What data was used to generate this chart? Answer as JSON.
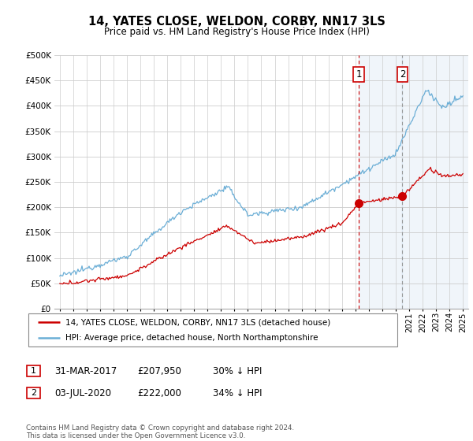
{
  "title": "14, YATES CLOSE, WELDON, CORBY, NN17 3LS",
  "subtitle": "Price paid vs. HM Land Registry's House Price Index (HPI)",
  "legend_line1": "14, YATES CLOSE, WELDON, CORBY, NN17 3LS (detached house)",
  "legend_line2": "HPI: Average price, detached house, North Northamptonshire",
  "footnote": "Contains HM Land Registry data © Crown copyright and database right 2024.\nThis data is licensed under the Open Government Licence v3.0.",
  "annotation1_label": "1",
  "annotation1_date": "31-MAR-2017",
  "annotation1_price": "£207,950",
  "annotation1_hpi": "30% ↓ HPI",
  "annotation2_label": "2",
  "annotation2_date": "03-JUL-2020",
  "annotation2_price": "£222,000",
  "annotation2_hpi": "34% ↓ HPI",
  "hpi_color": "#6baed6",
  "price_color": "#cc0000",
  "vline1_color": "#cc0000",
  "vline2_color": "#999999",
  "annotation_box_color": "#cc0000",
  "shade_color": "#c6dbef",
  "background_color": "#ffffff",
  "ylim": [
    0,
    500000
  ],
  "yticks": [
    0,
    50000,
    100000,
    150000,
    200000,
    250000,
    300000,
    350000,
    400000,
    450000,
    500000
  ],
  "year_start": 1995,
  "year_end": 2025,
  "sale1_year": 2017.25,
  "sale1_value": 207950,
  "sale2_year": 2020.5,
  "sale2_value": 222000,
  "vline1_year": 2017.25,
  "vline2_year": 2020.5
}
